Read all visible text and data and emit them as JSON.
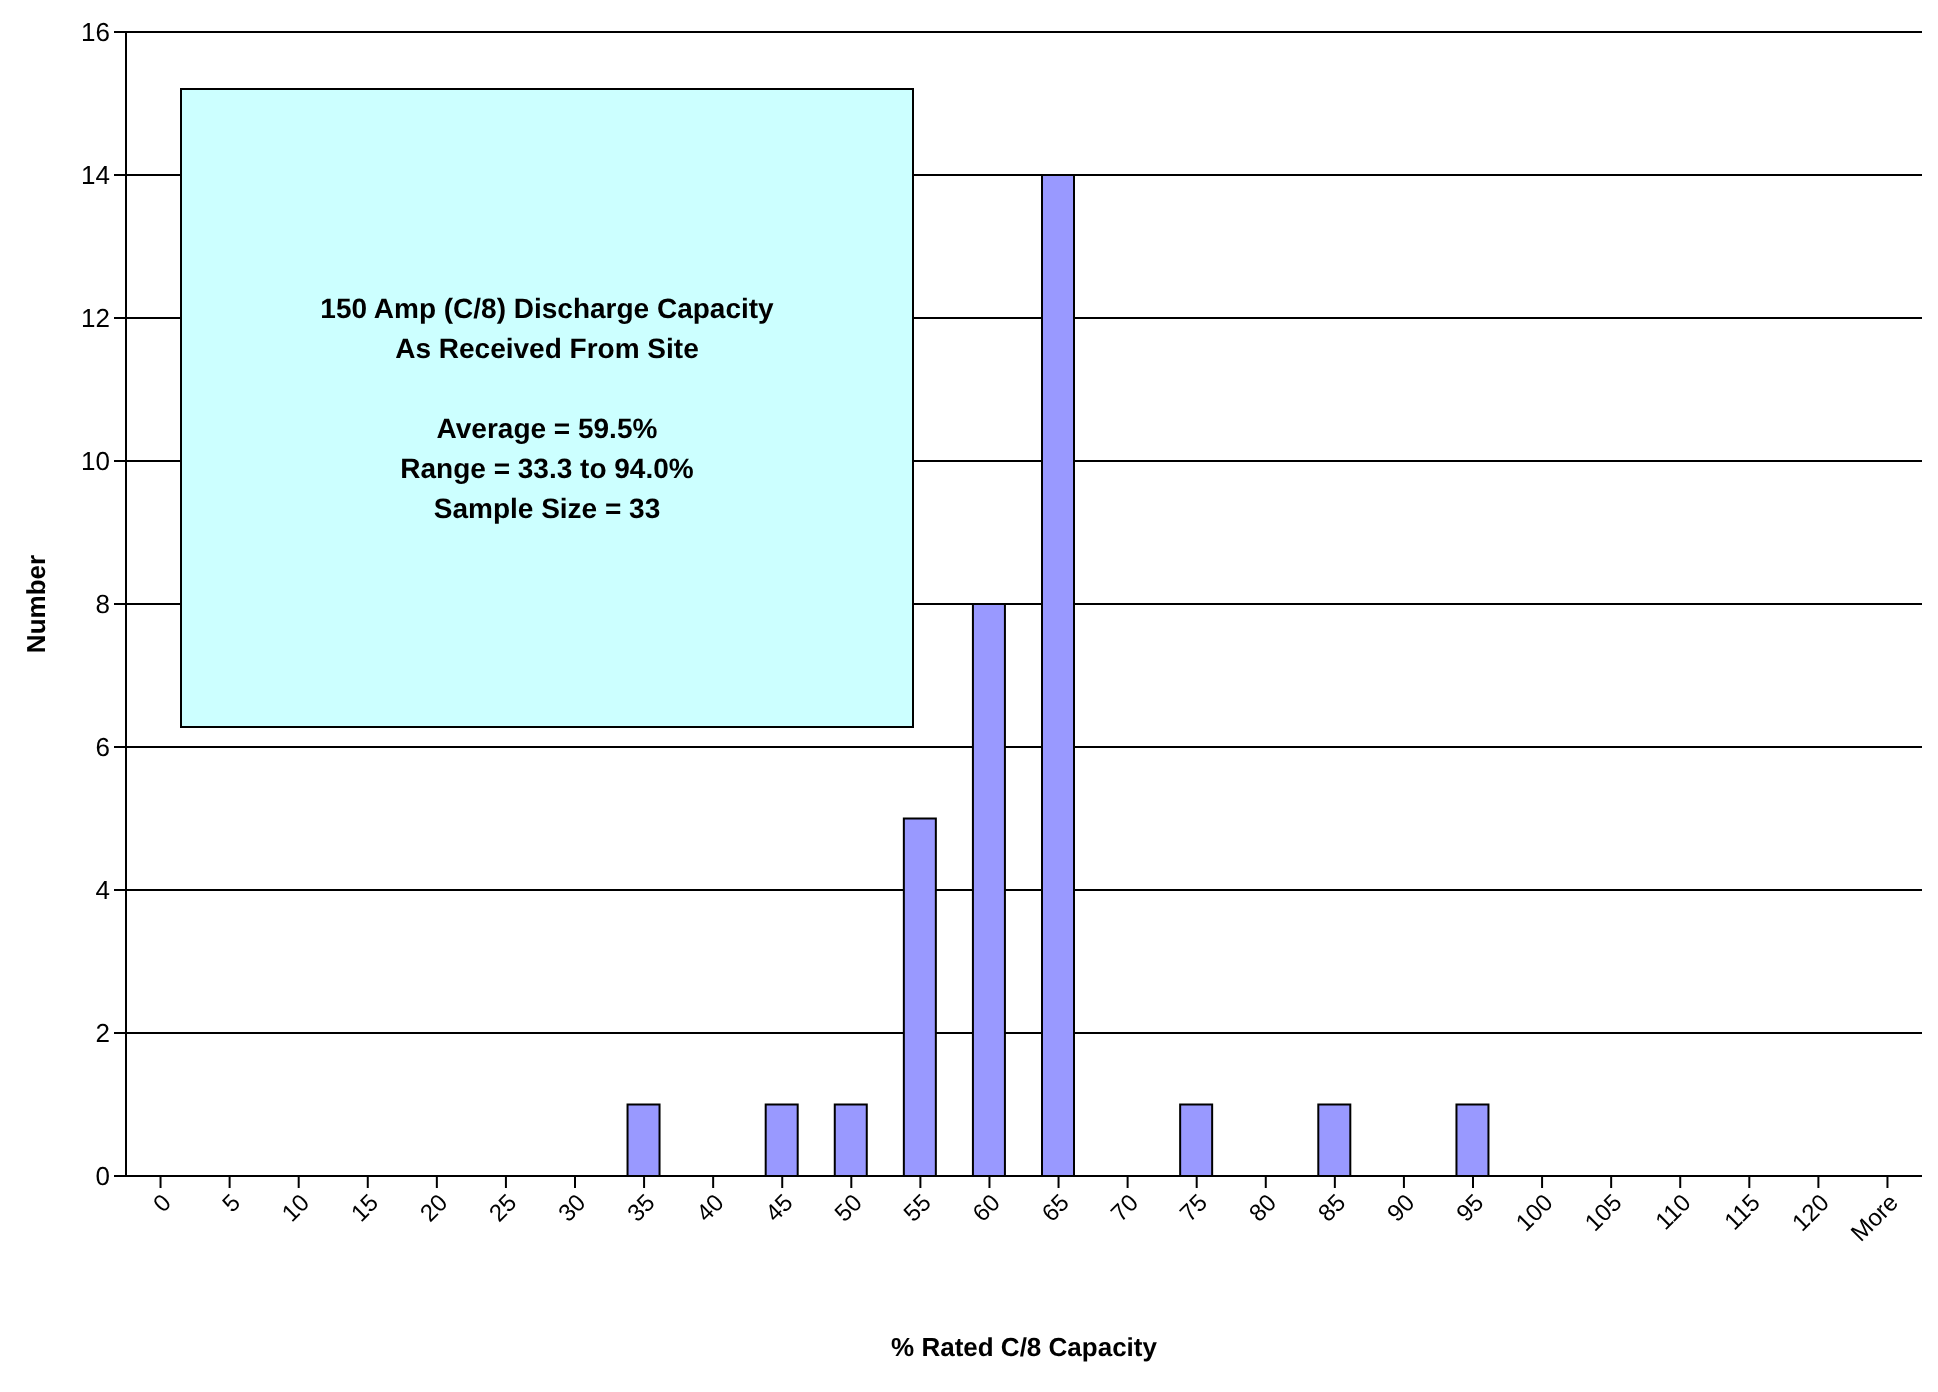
{
  "chart_data": {
    "type": "bar",
    "categories": [
      "0",
      "5",
      "10",
      "15",
      "20",
      "25",
      "30",
      "35",
      "40",
      "45",
      "50",
      "55",
      "60",
      "65",
      "70",
      "75",
      "80",
      "85",
      "90",
      "95",
      "100",
      "105",
      "110",
      "115",
      "120",
      "More"
    ],
    "values": [
      0,
      0,
      0,
      0,
      0,
      0,
      0,
      1,
      0,
      1,
      1,
      5,
      8,
      14,
      0,
      1,
      0,
      1,
      0,
      1,
      0,
      0,
      0,
      0,
      0,
      0
    ],
    "color": "#9999ff",
    "xlabel": "% Rated C/8 Capacity",
    "ylabel": "Number",
    "ylim": [
      0,
      16
    ],
    "yticks": [
      0,
      2,
      4,
      6,
      8,
      10,
      12,
      14,
      16
    ],
    "grid": "y",
    "annotations": [
      "150 Amp (C/8) Discharge Capacity",
      "As Received From Site",
      "Average = 59.5%",
      "Range = 33.3 to 94.0%",
      "Sample Size = 33"
    ]
  }
}
